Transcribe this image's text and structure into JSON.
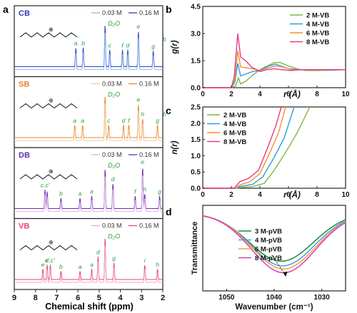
{
  "panel_letters": {
    "a": "a",
    "b": "b",
    "c": "c",
    "d": "d"
  },
  "nmr": {
    "xlabel": "Chemical shift (ppm)",
    "xticks": [
      "9",
      "8",
      "7",
      "6",
      "5",
      "4",
      "3",
      "2"
    ],
    "legend_low": "0.03 M",
    "legend_high": "0.16 M",
    "solvent": "D₂O",
    "panels": [
      {
        "name": "CB",
        "color_low": "#8fb6f0",
        "color_high": "#2a3fc4",
        "peaks": [
          {
            "ppm": 6.1,
            "h": 0.45,
            "lbl": "a"
          },
          {
            "ppm": 5.75,
            "h": 0.45,
            "lbl": "b"
          },
          {
            "ppm": 4.72,
            "h": 1.0,
            "lbl": ""
          },
          {
            "ppm": 4.5,
            "h": 0.4,
            "lbl": "c"
          },
          {
            "ppm": 3.9,
            "h": 0.4,
            "lbl": "f"
          },
          {
            "ppm": 3.65,
            "h": 0.4,
            "lbl": "d"
          },
          {
            "ppm": 3.15,
            "h": 0.85,
            "lbl": "e"
          },
          {
            "ppm": 2.45,
            "h": 0.38,
            "lbl": "g"
          },
          {
            "ppm": 1.92,
            "h": 0.55,
            "lbl": "b"
          }
        ]
      },
      {
        "name": "SB",
        "color_low": "#f6c79a",
        "color_high": "#e9832e",
        "peaks": [
          {
            "ppm": 6.15,
            "h": 0.3,
            "lbl": "a"
          },
          {
            "ppm": 5.78,
            "h": 0.3,
            "lbl": "a"
          },
          {
            "ppm": 4.72,
            "h": 1.0,
            "lbl": ""
          },
          {
            "ppm": 4.55,
            "h": 0.3,
            "lbl": "c"
          },
          {
            "ppm": 3.85,
            "h": 0.3,
            "lbl": "d"
          },
          {
            "ppm": 3.6,
            "h": 0.3,
            "lbl": "f"
          },
          {
            "ppm": 3.15,
            "h": 0.8,
            "lbl": "e"
          },
          {
            "ppm": 2.95,
            "h": 0.45,
            "lbl": "h"
          },
          {
            "ppm": 2.25,
            "h": 0.3,
            "lbl": "g"
          },
          {
            "ppm": 1.92,
            "h": 0.45,
            "lbl": "b"
          }
        ]
      },
      {
        "name": "DB",
        "color_low": "#d9b3e8",
        "color_high": "#6a2bb3",
        "peaks": [
          {
            "ppm": 7.55,
            "h": 0.45,
            "lbl": "c,c′"
          },
          {
            "ppm": 7.45,
            "h": 0.4,
            "lbl": ""
          },
          {
            "ppm": 6.8,
            "h": 0.25,
            "lbl": "b"
          },
          {
            "ppm": 5.9,
            "h": 0.25,
            "lbl": "a"
          },
          {
            "ppm": 5.35,
            "h": 0.3,
            "lbl": "a"
          },
          {
            "ppm": 4.72,
            "h": 0.95,
            "lbl": ""
          },
          {
            "ppm": 4.35,
            "h": 0.6,
            "lbl": "d"
          },
          {
            "ppm": 3.3,
            "h": 0.3,
            "lbl": "f"
          },
          {
            "ppm": 2.95,
            "h": 1.0,
            "lbl": "e"
          },
          {
            "ppm": 2.85,
            "h": 0.35,
            "lbl": "h"
          },
          {
            "ppm": 2.15,
            "h": 0.3,
            "lbl": "g"
          }
        ]
      },
      {
        "name": "VB",
        "color_low": "#f3a6c6",
        "color_high": "#e8417f",
        "peaks": [
          {
            "ppm": 7.65,
            "h": 0.25,
            "lbl": "e"
          },
          {
            "ppm": 7.45,
            "h": 0.35,
            "lbl": "e′"
          },
          {
            "ppm": 7.3,
            "h": 0.35,
            "lbl": "c,c′"
          },
          {
            "ppm": 6.8,
            "h": 0.2,
            "lbl": "b"
          },
          {
            "ppm": 5.9,
            "h": 0.2,
            "lbl": "a"
          },
          {
            "ppm": 5.35,
            "h": 0.25,
            "lbl": "a"
          },
          {
            "ppm": 5.05,
            "h": 0.55,
            "lbl": "d"
          },
          {
            "ppm": 4.72,
            "h": 1.0,
            "lbl": ""
          },
          {
            "ppm": 4.3,
            "h": 0.4,
            "lbl": "g"
          },
          {
            "ppm": 2.85,
            "h": 0.35,
            "lbl": "i"
          },
          {
            "ppm": 2.25,
            "h": 0.25,
            "lbl": "h"
          }
        ]
      }
    ]
  },
  "chart_data": [
    {
      "type": "line",
      "panel": "b",
      "xlabel": "r (Å)",
      "ylabel": "g(r)",
      "xlim": [
        0,
        10
      ],
      "ylim": [
        0,
        4.5
      ],
      "xticks": [
        "0",
        "2",
        "4",
        "6",
        "8",
        "10"
      ],
      "yticks": [
        "0.0",
        "1.5",
        "3.0",
        "4.5"
      ],
      "series": [
        {
          "name": "2 M-VB",
          "color": "#7cb842",
          "points": [
            [
              0,
              0
            ],
            [
              2,
              0
            ],
            [
              2.3,
              0.1
            ],
            [
              2.5,
              0.55
            ],
            [
              2.65,
              0.2
            ],
            [
              3.0,
              0.35
            ],
            [
              3.5,
              0.7
            ],
            [
              4.0,
              1.0
            ],
            [
              4.5,
              1.2
            ],
            [
              5.0,
              1.38
            ],
            [
              5.4,
              1.4
            ],
            [
              6.0,
              1.2
            ],
            [
              6.6,
              1.05
            ],
            [
              7.2,
              0.95
            ],
            [
              8,
              0.95
            ],
            [
              9,
              0.97
            ],
            [
              10,
              1.0
            ]
          ]
        },
        {
          "name": "4 M-VB",
          "color": "#2c9ee0",
          "points": [
            [
              0,
              0
            ],
            [
              2,
              0
            ],
            [
              2.25,
              0.3
            ],
            [
              2.45,
              1.35
            ],
            [
              2.65,
              0.65
            ],
            [
              3.0,
              0.75
            ],
            [
              3.5,
              0.9
            ],
            [
              4.0,
              0.95
            ],
            [
              4.6,
              1.2
            ],
            [
              5.1,
              1.3
            ],
            [
              5.5,
              1.2
            ],
            [
              6.0,
              1.05
            ],
            [
              7,
              1.0
            ],
            [
              8,
              1.0
            ],
            [
              9,
              0.98
            ],
            [
              10,
              1.0
            ]
          ]
        },
        {
          "name": "6 M-VB",
          "color": "#f0922e",
          "points": [
            [
              0,
              0
            ],
            [
              2,
              0
            ],
            [
              2.25,
              0.5
            ],
            [
              2.45,
              2.05
            ],
            [
              2.65,
              1.15
            ],
            [
              3.0,
              1.1
            ],
            [
              3.5,
              1.05
            ],
            [
              4.0,
              0.95
            ],
            [
              4.6,
              1.1
            ],
            [
              5.1,
              1.2
            ],
            [
              5.6,
              1.15
            ],
            [
              6.2,
              1.0
            ],
            [
              7,
              1.0
            ],
            [
              8,
              0.98
            ],
            [
              9,
              1.0
            ],
            [
              10,
              1.0
            ]
          ]
        },
        {
          "name": "8 M-VB",
          "color": "#e63a8d",
          "points": [
            [
              0,
              0
            ],
            [
              2,
              0
            ],
            [
              2.2,
              0.6
            ],
            [
              2.45,
              3.0
            ],
            [
              2.65,
              1.7
            ],
            [
              3.0,
              1.5
            ],
            [
              3.4,
              1.15
            ],
            [
              4.0,
              0.9
            ],
            [
              4.5,
              1.0
            ],
            [
              5.0,
              1.05
            ],
            [
              5.5,
              1.0
            ],
            [
              6.2,
              0.95
            ],
            [
              7,
              1.0
            ],
            [
              8,
              1.0
            ],
            [
              9,
              1.0
            ],
            [
              10,
              1.0
            ]
          ]
        }
      ]
    },
    {
      "type": "line",
      "panel": "c",
      "xlabel": "r (Å)",
      "ylabel": "n(r)",
      "xlim": [
        0,
        10
      ],
      "ylim": [
        0,
        2.5
      ],
      "xticks": [
        "0",
        "2",
        "4",
        "6",
        "8",
        "10"
      ],
      "yticks": [
        "0.0",
        "0.5",
        "1.0",
        "1.5",
        "2.0",
        "2.5"
      ],
      "series": [
        {
          "name": "2 M-VB",
          "color": "#7cb842",
          "points": [
            [
              0,
              0
            ],
            [
              2.3,
              0
            ],
            [
              2.6,
              0.02
            ],
            [
              3.5,
              0.05
            ],
            [
              4.3,
              0.15
            ],
            [
              5.0,
              0.55
            ],
            [
              5.8,
              1.1
            ],
            [
              6.6,
              1.7
            ],
            [
              7.5,
              2.5
            ]
          ]
        },
        {
          "name": "4 M-VB",
          "color": "#2c9ee0",
          "points": [
            [
              0,
              0
            ],
            [
              2.3,
              0
            ],
            [
              2.6,
              0.05
            ],
            [
              3.5,
              0.12
            ],
            [
              4.2,
              0.35
            ],
            [
              5.0,
              0.95
            ],
            [
              5.7,
              1.55
            ],
            [
              6.4,
              2.5
            ]
          ]
        },
        {
          "name": "6 M-VB",
          "color": "#f0922e",
          "points": [
            [
              0,
              0
            ],
            [
              2.3,
              0
            ],
            [
              2.6,
              0.1
            ],
            [
              3.3,
              0.2
            ],
            [
              4.0,
              0.45
            ],
            [
              4.7,
              1.1
            ],
            [
              5.3,
              1.7
            ],
            [
              5.8,
              2.5
            ]
          ]
        },
        {
          "name": "8 M-VB",
          "color": "#e63a8d",
          "points": [
            [
              0,
              0
            ],
            [
              2.2,
              0
            ],
            [
              2.6,
              0.2
            ],
            [
              3.2,
              0.3
            ],
            [
              3.9,
              0.55
            ],
            [
              4.5,
              1.2
            ],
            [
              5.1,
              1.9
            ],
            [
              5.5,
              2.5
            ]
          ]
        }
      ]
    },
    {
      "type": "line",
      "panel": "d",
      "xlabel": "Wavenumber (cm⁻¹)",
      "ylabel": "Transmittance",
      "xlim": [
        1055,
        1025
      ],
      "xticks": [
        "1050",
        "1040",
        "1030"
      ],
      "series": [
        {
          "name": "3 M-pVB",
          "color": "#1e8a3a",
          "center": 1038.5,
          "depth": 0.62
        },
        {
          "name": "4 M-pVB",
          "color": "#4a9fe6",
          "center": 1038.2,
          "depth": 0.68
        },
        {
          "name": "6 M-pVB",
          "color": "#f0a040",
          "center": 1038.0,
          "depth": 0.72
        },
        {
          "name": "8 M-pVB",
          "color": "#d63fb8",
          "center": 1038.0,
          "depth": 0.77
        }
      ]
    }
  ]
}
